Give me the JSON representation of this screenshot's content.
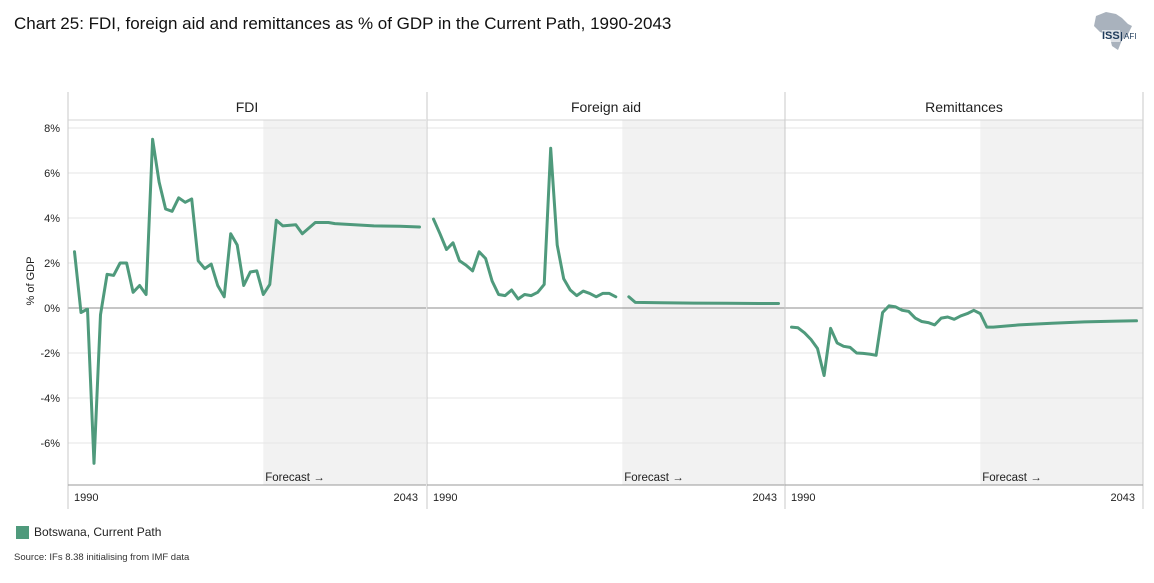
{
  "title": "Chart 25: FDI, foreign aid and remittances as % of GDP in the Current Path, 1990-2043",
  "logo": {
    "text": "ISS",
    "subtext": "AFI",
    "icon": "africa-map-icon"
  },
  "legend": {
    "label": "Botswana, Current Path",
    "color": "#4f9a7c"
  },
  "source": "Source: IFs 8.38 initialising from IMF data",
  "colors": {
    "series": "#4f9a7c",
    "forecast_band": "#f2f2f2",
    "grid": "#e6e6e6",
    "zero_line": "#8c8c8c"
  },
  "chart_data": {
    "type": "line",
    "ylabel": "% of GDP",
    "ylim": [
      -8,
      8
    ],
    "yticks": [
      8,
      6,
      4,
      2,
      0,
      -2,
      -4,
      -6
    ],
    "ytick_labels": [
      "8%",
      "6%",
      "4%",
      "2%",
      "0%",
      "-2%",
      "-4%",
      "-6%"
    ],
    "xlim": [
      1989,
      2044
    ],
    "xtick_labels": [
      "1990",
      "2043"
    ],
    "forecast_start": 2019,
    "forecast_label": "Forecast →",
    "panels": [
      {
        "title": "FDI",
        "series": [
          {
            "name": "Botswana, Current Path",
            "segments": [
              [
                [
                  1990,
                  2.5
                ],
                [
                  1991,
                  -0.2
                ],
                [
                  1992,
                  -0.05
                ],
                [
                  1993,
                  -6.9
                ],
                [
                  1994,
                  -0.3
                ],
                [
                  1995,
                  1.5
                ],
                [
                  1996,
                  1.45
                ],
                [
                  1997,
                  2.0
                ],
                [
                  1998,
                  2.0
                ],
                [
                  1999,
                  0.7
                ],
                [
                  2000,
                  1.0
                ],
                [
                  2001,
                  0.6
                ],
                [
                  2002,
                  7.5
                ],
                [
                  2003,
                  5.6
                ],
                [
                  2004,
                  4.4
                ],
                [
                  2005,
                  4.3
                ],
                [
                  2006,
                  4.9
                ],
                [
                  2007,
                  4.7
                ],
                [
                  2008,
                  4.85
                ],
                [
                  2009,
                  2.1
                ],
                [
                  2010,
                  1.75
                ],
                [
                  2011,
                  1.95
                ],
                [
                  2012,
                  1.0
                ],
                [
                  2013,
                  0.5
                ],
                [
                  2014,
                  3.3
                ],
                [
                  2015,
                  2.8
                ],
                [
                  2016,
                  1.0
                ],
                [
                  2017,
                  1.6
                ],
                [
                  2018,
                  1.65
                ],
                [
                  2019,
                  0.6
                ],
                [
                  2020,
                  1.05
                ],
                [
                  2021,
                  3.9
                ],
                [
                  2022,
                  3.65
                ],
                [
                  2024,
                  3.7
                ],
                [
                  2025,
                  3.3
                ],
                [
                  2027,
                  3.8
                ],
                [
                  2029,
                  3.8
                ],
                [
                  2030,
                  3.75
                ],
                [
                  2033,
                  3.7
                ],
                [
                  2036,
                  3.65
                ],
                [
                  2040,
                  3.63
                ],
                [
                  2043,
                  3.6
                ]
              ]
            ]
          }
        ]
      },
      {
        "title": "Foreign aid",
        "series": [
          {
            "name": "Botswana, Current Path",
            "segments": [
              [
                [
                  1990,
                  3.95
                ],
                [
                  1991,
                  3.3
                ],
                [
                  1992,
                  2.6
                ],
                [
                  1993,
                  2.9
                ],
                [
                  1994,
                  2.1
                ],
                [
                  1995,
                  1.9
                ],
                [
                  1996,
                  1.65
                ],
                [
                  1997,
                  2.5
                ],
                [
                  1998,
                  2.2
                ],
                [
                  1999,
                  1.2
                ],
                [
                  2000,
                  0.6
                ],
                [
                  2001,
                  0.55
                ],
                [
                  2002,
                  0.8
                ],
                [
                  2003,
                  0.4
                ],
                [
                  2004,
                  0.6
                ],
                [
                  2005,
                  0.55
                ],
                [
                  2006,
                  0.7
                ],
                [
                  2007,
                  1.05
                ],
                [
                  2008,
                  7.1
                ],
                [
                  2009,
                  2.8
                ],
                [
                  2010,
                  1.3
                ],
                [
                  2011,
                  0.8
                ],
                [
                  2012,
                  0.55
                ],
                [
                  2013,
                  0.75
                ],
                [
                  2014,
                  0.65
                ],
                [
                  2015,
                  0.5
                ],
                [
                  2016,
                  0.65
                ],
                [
                  2017,
                  0.65
                ],
                [
                  2018,
                  0.5
                ]
              ],
              [
                [
                  2020,
                  0.5
                ],
                [
                  2021,
                  0.25
                ],
                [
                  2025,
                  0.23
                ],
                [
                  2030,
                  0.22
                ],
                [
                  2035,
                  0.21
                ],
                [
                  2040,
                  0.2
                ],
                [
                  2043,
                  0.2
                ]
              ]
            ]
          }
        ]
      },
      {
        "title": "Remittances",
        "series": [
          {
            "name": "Botswana, Current Path",
            "segments": [
              [
                [
                  1990,
                  -0.85
                ],
                [
                  1991,
                  -0.88
                ],
                [
                  1992,
                  -1.1
                ],
                [
                  1993,
                  -1.4
                ],
                [
                  1994,
                  -1.8
                ],
                [
                  1995,
                  -3.0
                ],
                [
                  1996,
                  -0.9
                ],
                [
                  1997,
                  -1.55
                ],
                [
                  1998,
                  -1.7
                ],
                [
                  1999,
                  -1.75
                ],
                [
                  2000,
                  -2.0
                ],
                [
                  2001,
                  -2.02
                ],
                [
                  2002,
                  -2.05
                ],
                [
                  2003,
                  -2.1
                ],
                [
                  2004,
                  -0.2
                ],
                [
                  2005,
                  0.1
                ],
                [
                  2006,
                  0.05
                ],
                [
                  2007,
                  -0.1
                ],
                [
                  2008,
                  -0.15
                ],
                [
                  2009,
                  -0.45
                ],
                [
                  2010,
                  -0.6
                ],
                [
                  2011,
                  -0.65
                ],
                [
                  2012,
                  -0.75
                ],
                [
                  2013,
                  -0.45
                ],
                [
                  2014,
                  -0.4
                ],
                [
                  2015,
                  -0.5
                ],
                [
                  2016,
                  -0.35
                ],
                [
                  2017,
                  -0.25
                ],
                [
                  2018,
                  -0.1
                ],
                [
                  2019,
                  -0.25
                ],
                [
                  2020,
                  -0.85
                ],
                [
                  2021,
                  -0.85
                ],
                [
                  2023,
                  -0.8
                ],
                [
                  2025,
                  -0.75
                ],
                [
                  2030,
                  -0.68
                ],
                [
                  2035,
                  -0.62
                ],
                [
                  2040,
                  -0.58
                ],
                [
                  2043,
                  -0.57
                ]
              ]
            ]
          }
        ]
      }
    ]
  }
}
